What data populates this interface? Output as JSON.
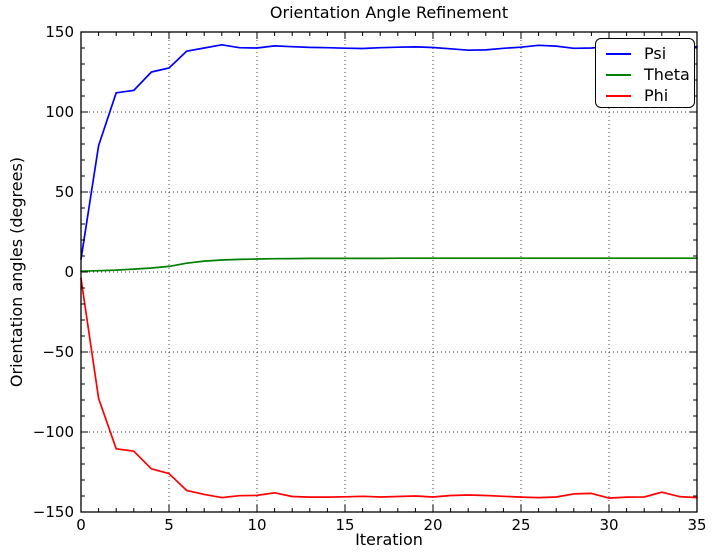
{
  "chart_data": {
    "type": "line",
    "title": "Orientation Angle Refinement",
    "xlabel": "Iteration",
    "ylabel": "Orientation angles (degrees)",
    "xlim": [
      0,
      35
    ],
    "ylim": [
      -150,
      150
    ],
    "x_major_ticks": [
      0,
      5,
      10,
      15,
      20,
      25,
      30,
      35
    ],
    "x_tick_labels": [
      "0",
      "5",
      "10",
      "15",
      "20",
      "25",
      "30",
      "35"
    ],
    "x_minor_step": 1,
    "y_major_ticks": [
      -150,
      -100,
      -50,
      0,
      50,
      100,
      150
    ],
    "y_tick_labels": [
      "−150",
      "−100",
      "−50",
      "0",
      "50",
      "100",
      "150"
    ],
    "y_minor_step": 10,
    "grid": "dotted on major ticks",
    "legend_position": "upper right",
    "axis_color": "#000000",
    "background_color": "#ffffff",
    "x": [
      0,
      1,
      2,
      3,
      4,
      5,
      6,
      7,
      8,
      9,
      10,
      11,
      12,
      13,
      14,
      15,
      16,
      17,
      18,
      19,
      20,
      21,
      22,
      23,
      24,
      25,
      26,
      27,
      28,
      29,
      30,
      31,
      32,
      33,
      34,
      35
    ],
    "series": [
      {
        "name": "Psi",
        "color": "#0000ff",
        "values": [
          8,
          79,
          112,
          113.5,
          125,
          127.5,
          138,
          140,
          142,
          140.2,
          140.0,
          141.3,
          140.8,
          140.4,
          140.2,
          139.9,
          139.7,
          140.2,
          140.5,
          140.7,
          140.3,
          139.5,
          138.6,
          138.8,
          139.8,
          140.5,
          141.7,
          141.2,
          139.8,
          140.0,
          140.8,
          140.6,
          140.5,
          140.6,
          139.7,
          140.9
        ]
      },
      {
        "name": "Theta",
        "color": "#008000",
        "values": [
          0.5,
          0.8,
          1.2,
          1.8,
          2.5,
          3.5,
          5.5,
          6.8,
          7.5,
          7.9,
          8.1,
          8.3,
          8.4,
          8.5,
          8.5,
          8.5,
          8.5,
          8.5,
          8.6,
          8.6,
          8.6,
          8.6,
          8.6,
          8.6,
          8.6,
          8.6,
          8.6,
          8.6,
          8.6,
          8.6,
          8.6,
          8.6,
          8.6,
          8.6,
          8.6,
          8.6
        ]
      },
      {
        "name": "Phi",
        "color": "#ff0000",
        "values": [
          -4,
          -79,
          -110.5,
          -112,
          -123,
          -126,
          -136.5,
          -139,
          -141,
          -139.8,
          -139.6,
          -138,
          -140.3,
          -140.7,
          -140.7,
          -140.5,
          -140.2,
          -140.6,
          -140.3,
          -140,
          -140.6,
          -139.7,
          -139.4,
          -139.7,
          -140.2,
          -140.7,
          -141,
          -140.6,
          -138.7,
          -138.4,
          -141.3,
          -140.7,
          -140.6,
          -137.6,
          -140.4,
          -141
        ]
      }
    ]
  }
}
